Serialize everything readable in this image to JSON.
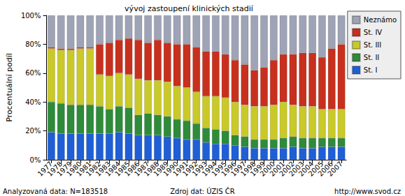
{
  "chart_data": {
    "type": "bar",
    "title": "vývoj zastoupení klinických stadií",
    "y_label": "Procentuální podíl",
    "annotations": [
      "Analyzovaná data: N=183518",
      "Zdroj dat: ÚZIS ČR",
      "http://www.svod.cz"
    ],
    "categories": [
      "1977",
      "1978",
      "1979",
      "1980",
      "1981",
      "1982",
      "1983",
      "1984",
      "1985",
      "1986",
      "1987",
      "1988",
      "1989",
      "1990",
      "1991",
      "1992",
      "1993",
      "1994",
      "1995",
      "1996",
      "1997",
      "1998",
      "1999",
      "2000",
      "2001",
      "2002",
      "2003",
      "2004",
      "2005",
      "2006",
      "2007"
    ],
    "series": [
      {
        "name": "St. I",
        "color": "#1f5fd6",
        "values": [
          19,
          18,
          18,
          18,
          18,
          18,
          18,
          19,
          18,
          17,
          17,
          17,
          16,
          15,
          14,
          14,
          12,
          11,
          11,
          10,
          9,
          8,
          8,
          8,
          8,
          9,
          8,
          8,
          9,
          9,
          9
        ]
      },
      {
        "name": "St. II",
        "color": "#2e8b3a",
        "values": [
          21,
          21,
          20,
          20,
          20,
          19,
          17,
          18,
          18,
          14,
          15,
          14,
          14,
          13,
          13,
          11,
          10,
          10,
          9,
          7,
          7,
          6,
          6,
          6,
          7,
          7,
          7,
          7,
          6,
          6,
          6
        ]
      },
      {
        "name": "St. III",
        "color": "#c9c92a",
        "values": [
          37,
          37,
          38,
          39,
          39,
          22,
          23,
          23,
          23,
          25,
          23,
          24,
          24,
          23,
          23,
          22,
          22,
          23,
          23,
          23,
          22,
          23,
          23,
          24,
          25,
          22,
          22,
          22,
          20,
          20,
          20
        ]
      },
      {
        "name": "St. IV",
        "color": "#c8301e",
        "values": [
          1,
          1,
          1,
          1,
          1,
          21,
          23,
          23,
          25,
          27,
          26,
          28,
          27,
          29,
          30,
          31,
          31,
          31,
          30,
          29,
          28,
          25,
          27,
          31,
          33,
          35,
          37,
          37,
          36,
          42,
          45
        ]
      },
      {
        "name": "Neznámo",
        "color": "#9fa3b6",
        "values": [
          22,
          23,
          23,
          22,
          22,
          20,
          19,
          17,
          16,
          17,
          19,
          17,
          19,
          20,
          20,
          22,
          25,
          25,
          27,
          31,
          34,
          38,
          36,
          31,
          27,
          27,
          26,
          26,
          29,
          23,
          20
        ]
      }
    ],
    "ylim": [
      0,
      100
    ],
    "yticks": [
      {
        "value": 0,
        "label": "0%"
      },
      {
        "value": 20,
        "label": "20%"
      },
      {
        "value": 40,
        "label": "40%"
      },
      {
        "value": 60,
        "label": "60%"
      },
      {
        "value": 80,
        "label": "80%"
      },
      {
        "value": 100,
        "label": "100%"
      }
    ],
    "stacked": true,
    "legend": "top-right",
    "grid": false
  }
}
